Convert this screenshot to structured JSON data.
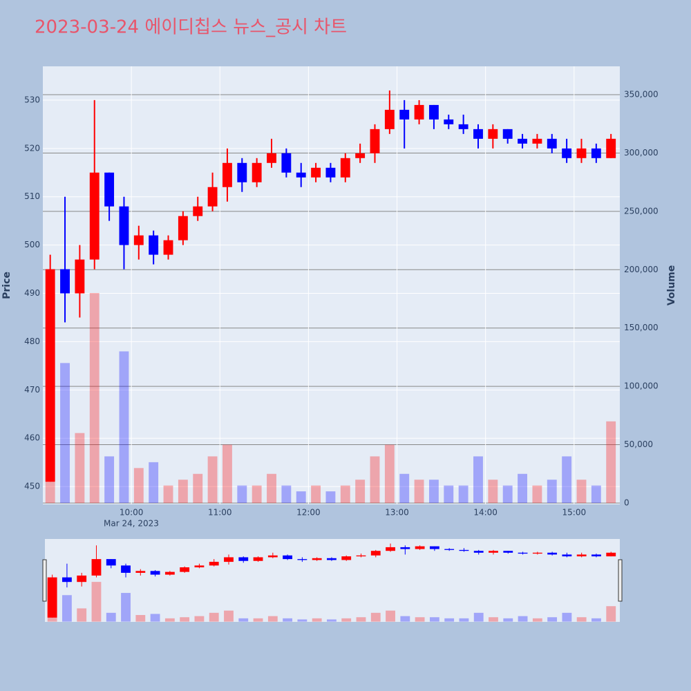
{
  "chart_data": {
    "type": "candlestick",
    "title": "2023-03-24 에이디칩스 뉴스_공시 차트",
    "y_label": "Price",
    "y2_label": "Volume",
    "x": [
      "2023-03-24 09:00",
      "2023-03-24 09:10",
      "2023-03-24 09:20",
      "2023-03-24 09:30",
      "2023-03-24 09:40",
      "2023-03-24 09:50",
      "2023-03-24 10:00",
      "2023-03-24 10:10",
      "2023-03-24 10:20",
      "2023-03-24 10:30",
      "2023-03-24 10:40",
      "2023-03-24 10:50",
      "2023-03-24 11:00",
      "2023-03-24 11:10",
      "2023-03-24 11:20",
      "2023-03-24 11:30",
      "2023-03-24 11:40",
      "2023-03-24 11:50",
      "2023-03-24 12:00",
      "2023-03-24 12:10",
      "2023-03-24 12:20",
      "2023-03-24 12:30",
      "2023-03-24 12:40",
      "2023-03-24 12:50",
      "2023-03-24 13:00",
      "2023-03-24 13:10",
      "2023-03-24 13:20",
      "2023-03-24 13:30",
      "2023-03-24 13:40",
      "2023-03-24 13:50",
      "2023-03-24 14:00",
      "2023-03-24 14:10",
      "2023-03-24 14:20",
      "2023-03-24 14:30",
      "2023-03-24 14:40",
      "2023-03-24 14:50",
      "2023-03-24 15:00",
      "2023-03-24 15:10",
      "2023-03-24 15:20"
    ],
    "open": [
      451,
      495,
      490,
      497,
      515,
      508,
      500,
      502,
      498,
      501,
      506,
      508,
      512,
      517,
      513,
      517,
      519,
      515,
      514,
      516,
      514,
      518,
      519,
      524,
      528,
      526,
      529,
      526,
      525,
      524,
      522,
      524,
      522,
      521,
      522,
      520,
      518,
      520,
      518
    ],
    "high": [
      498,
      510,
      500,
      530,
      515,
      510,
      504,
      503,
      502,
      507,
      510,
      515,
      520,
      518,
      518,
      522,
      520,
      517,
      517,
      517,
      519,
      521,
      525,
      532,
      530,
      530,
      529,
      527,
      527,
      525,
      525,
      524,
      523,
      523,
      523,
      522,
      522,
      521,
      523
    ],
    "low": [
      451,
      484,
      485,
      495,
      505,
      495,
      497,
      496,
      497,
      500,
      505,
      507,
      509,
      511,
      512,
      516,
      514,
      512,
      513,
      513,
      513,
      517,
      517,
      523,
      520,
      525,
      524,
      524,
      523,
      520,
      520,
      521,
      520,
      520,
      519,
      517,
      517,
      517,
      518
    ],
    "close": [
      495,
      490,
      497,
      515,
      508,
      500,
      502,
      498,
      501,
      506,
      508,
      512,
      517,
      513,
      517,
      519,
      515,
      514,
      516,
      514,
      518,
      519,
      524,
      528,
      526,
      529,
      526,
      525,
      524,
      522,
      524,
      522,
      521,
      522,
      520,
      518,
      520,
      518,
      522
    ],
    "volume": [
      180000,
      120000,
      60000,
      180000,
      40000,
      130000,
      30000,
      35000,
      15000,
      20000,
      25000,
      40000,
      50000,
      15000,
      15000,
      25000,
      15000,
      10000,
      15000,
      10000,
      15000,
      20000,
      40000,
      50000,
      25000,
      20000,
      20000,
      15000,
      15000,
      40000,
      20000,
      15000,
      25000,
      15000,
      20000,
      40000,
      20000,
      15000,
      70000
    ],
    "increasing_color": "#ff0000",
    "decreasing_color": "#0000ff",
    "xlim": [
      "2023-03-24 09:00",
      "2023-03-24 15:31"
    ],
    "xticks": [
      {
        "value": "2023-03-24 10:00",
        "label": "10:00"
      },
      {
        "value": "2023-03-24 11:00",
        "label": "11:00"
      },
      {
        "value": "2023-03-24 12:00",
        "label": "12:00"
      },
      {
        "value": "2023-03-24 13:00",
        "label": "13:00"
      },
      {
        "value": "2023-03-24 14:00",
        "label": "14:00"
      },
      {
        "value": "2023-03-24 15:00",
        "label": "15:00"
      }
    ],
    "x_date_label": "Mar 24, 2023",
    "ylim": [
      446.3,
      537
    ],
    "yticks": [
      450,
      460,
      470,
      480,
      490,
      500,
      510,
      520,
      530
    ],
    "y2lim": [
      -1200,
      374300
    ],
    "y2ticks": [
      0,
      {
        "value": 50000,
        "label": "50,000"
      },
      {
        "value": 100000,
        "label": "100,000"
      },
      {
        "value": 150000,
        "label": "150,000"
      },
      {
        "value": 200000,
        "label": "200,000"
      },
      {
        "value": 250000,
        "label": "250,000"
      },
      {
        "value": 300000,
        "label": "300,000"
      },
      {
        "value": 350000,
        "label": "350,000"
      }
    ],
    "grid": true,
    "range_slider": true
  }
}
